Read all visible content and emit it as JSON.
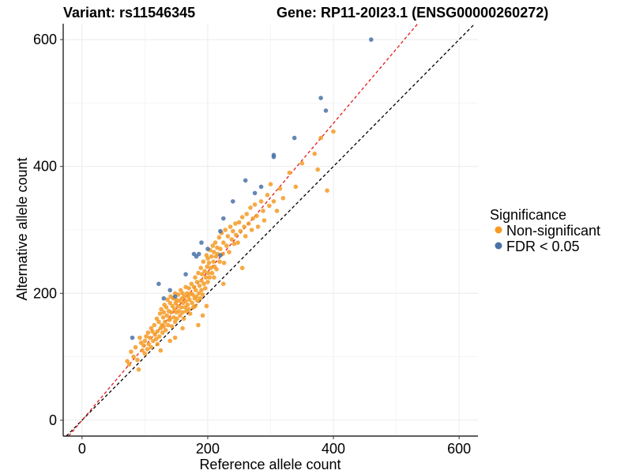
{
  "chart_data": {
    "type": "scatter",
    "title_left": "Variant: rs11546345",
    "title_right": "Gene: RP11-20I23.1 (ENSG00000260272)",
    "xlabel": "Reference allele count",
    "ylabel": "Alternative allele count",
    "xlim": [
      -30,
      630
    ],
    "ylim": [
      -25,
      625
    ],
    "x_ticks": [
      0,
      200,
      400,
      600
    ],
    "y_ticks": [
      0,
      200,
      400,
      600
    ],
    "x_tick_labels": [
      "0",
      "200",
      "400",
      "600"
    ],
    "y_tick_labels": [
      "0",
      "200",
      "400",
      "600"
    ],
    "grid": true,
    "reference_lines": [
      {
        "name": "identity",
        "slope": 1.0,
        "intercept": 0,
        "color": "#000000",
        "style": "dashed"
      },
      {
        "name": "fit",
        "slope": 1.17,
        "intercept": 0,
        "color": "#e41a1c",
        "style": "dashed"
      }
    ],
    "legend": {
      "title": "Significance",
      "position": "right",
      "entries": [
        {
          "label": "Non-significant",
          "color": "#f59a23"
        },
        {
          "label": "FDR < 0.05",
          "color": "#4a72a8"
        }
      ]
    },
    "series": [
      {
        "name": "Non-significant",
        "color": "#f59a23",
        "points": [
          [
            72,
            93
          ],
          [
            75,
            88
          ],
          [
            78,
            108
          ],
          [
            82,
            100
          ],
          [
            85,
            115
          ],
          [
            88,
            95
          ],
          [
            90,
            80
          ],
          [
            92,
            130
          ],
          [
            94,
            122
          ],
          [
            96,
            110
          ],
          [
            98,
            118
          ],
          [
            100,
            125
          ],
          [
            100,
            105
          ],
          [
            102,
            132
          ],
          [
            104,
            112
          ],
          [
            105,
            138
          ],
          [
            106,
            120
          ],
          [
            108,
            130
          ],
          [
            110,
            145
          ],
          [
            110,
            115
          ],
          [
            112,
            140
          ],
          [
            113,
            125
          ],
          [
            115,
            150
          ],
          [
            116,
            135
          ],
          [
            118,
            128
          ],
          [
            119,
            160
          ],
          [
            120,
            140
          ],
          [
            120,
            120
          ],
          [
            122,
            155
          ],
          [
            123,
            132
          ],
          [
            124,
            168
          ],
          [
            125,
            145
          ],
          [
            126,
            175
          ],
          [
            127,
            150
          ],
          [
            128,
            138
          ],
          [
            129,
            162
          ],
          [
            130,
            170
          ],
          [
            130,
            148
          ],
          [
            131,
            182
          ],
          [
            132,
            155
          ],
          [
            133,
            142
          ],
          [
            134,
            178
          ],
          [
            135,
            165
          ],
          [
            136,
            190
          ],
          [
            137,
            150
          ],
          [
            138,
            172
          ],
          [
            139,
            158
          ],
          [
            140,
            185
          ],
          [
            140,
            160
          ],
          [
            141,
            195
          ],
          [
            142,
            170
          ],
          [
            143,
            148
          ],
          [
            144,
            180
          ],
          [
            145,
            192
          ],
          [
            146,
            162
          ],
          [
            147,
            175
          ],
          [
            148,
            200
          ],
          [
            148,
            155
          ],
          [
            149,
            185
          ],
          [
            150,
            170
          ],
          [
            150,
            190
          ],
          [
            151,
            160
          ],
          [
            152,
            180
          ],
          [
            153,
            198
          ],
          [
            154,
            172
          ],
          [
            155,
            188
          ],
          [
            156,
            165
          ],
          [
            157,
            205
          ],
          [
            158,
            178
          ],
          [
            159,
            192
          ],
          [
            160,
            170
          ],
          [
            160,
            200
          ],
          [
            161,
            185
          ],
          [
            162,
            160
          ],
          [
            163,
            195
          ],
          [
            164,
            178
          ],
          [
            165,
            210
          ],
          [
            165,
            188
          ],
          [
            166,
            172
          ],
          [
            167,
            200
          ],
          [
            168,
            182
          ],
          [
            169,
            195
          ],
          [
            170,
            175
          ],
          [
            170,
            208
          ],
          [
            171,
            190
          ],
          [
            172,
            168
          ],
          [
            173,
            200
          ],
          [
            174,
            215
          ],
          [
            175,
            185
          ],
          [
            176,
            198
          ],
          [
            177,
            178
          ],
          [
            178,
            210
          ],
          [
            179,
            192
          ],
          [
            180,
            225
          ],
          [
            180,
            180
          ],
          [
            181,
            205
          ],
          [
            182,
            195
          ],
          [
            183,
            218
          ],
          [
            184,
            188
          ],
          [
            185,
            232
          ],
          [
            186,
            200
          ],
          [
            187,
            212
          ],
          [
            188,
            192
          ],
          [
            189,
            240
          ],
          [
            190,
            205
          ],
          [
            190,
            220
          ],
          [
            191,
            230
          ],
          [
            192,
            198
          ],
          [
            193,
            250
          ],
          [
            194,
            215
          ],
          [
            195,
            235
          ],
          [
            196,
            208
          ],
          [
            197,
            225
          ],
          [
            198,
            260
          ],
          [
            199,
            242
          ],
          [
            200,
            218
          ],
          [
            200,
            255
          ],
          [
            201,
            232
          ],
          [
            202,
            248
          ],
          [
            203,
            225
          ],
          [
            204,
            268
          ],
          [
            205,
            240
          ],
          [
            206,
            258
          ],
          [
            207,
            232
          ],
          [
            208,
            275
          ],
          [
            209,
            250
          ],
          [
            210,
            265
          ],
          [
            211,
            242
          ],
          [
            212,
            280
          ],
          [
            213,
            258
          ],
          [
            214,
            238
          ],
          [
            215,
            272
          ],
          [
            216,
            262
          ],
          [
            218,
            288
          ],
          [
            219,
            250
          ],
          [
            220,
            270
          ],
          [
            222,
            295
          ],
          [
            224,
            262
          ],
          [
            225,
            280
          ],
          [
            226,
            248
          ],
          [
            228,
            300
          ],
          [
            230,
            275
          ],
          [
            232,
            290
          ],
          [
            234,
            265
          ],
          [
            236,
            305
          ],
          [
            238,
            285
          ],
          [
            240,
            298
          ],
          [
            242,
            278
          ],
          [
            244,
            310
          ],
          [
            245,
            292
          ],
          [
            248,
            280
          ],
          [
            250,
            312
          ],
          [
            252,
            298
          ],
          [
            255,
            320
          ],
          [
            258,
            305
          ],
          [
            260,
            290
          ],
          [
            262,
            325
          ],
          [
            265,
            310
          ],
          [
            268,
            335
          ],
          [
            270,
            300
          ],
          [
            272,
            318
          ],
          [
            275,
            340
          ],
          [
            278,
            322
          ],
          [
            280,
            305
          ],
          [
            285,
            345
          ],
          [
            288,
            330
          ],
          [
            290,
            315
          ],
          [
            295,
            355
          ],
          [
            298,
            338
          ],
          [
            300,
            372
          ],
          [
            305,
            345
          ],
          [
            310,
            330
          ],
          [
            315,
            365
          ],
          [
            320,
            350
          ],
          [
            330,
            390
          ],
          [
            340,
            368
          ],
          [
            350,
            405
          ],
          [
            370,
            420
          ],
          [
            375,
            395
          ],
          [
            380,
            445
          ],
          [
            390,
            362
          ],
          [
            400,
            455
          ],
          [
            185,
            150
          ],
          [
            192,
            165
          ],
          [
            125,
            110
          ],
          [
            148,
            130
          ],
          [
            255,
            240
          ],
          [
            210,
            225
          ],
          [
            160,
            145
          ],
          [
            225,
            215
          ],
          [
            140,
            125
          ],
          [
            198,
            180
          ]
        ]
      },
      {
        "name": "FDR < 0.05",
        "color": "#4a72a8",
        "points": [
          [
            80,
            130
          ],
          [
            122,
            215
          ],
          [
            130,
            192
          ],
          [
            140,
            205
          ],
          [
            148,
            195
          ],
          [
            178,
            262
          ],
          [
            182,
            258
          ],
          [
            186,
            262
          ],
          [
            190,
            280
          ],
          [
            200,
            270
          ],
          [
            220,
            298
          ],
          [
            225,
            318
          ],
          [
            240,
            345
          ],
          [
            260,
            378
          ],
          [
            275,
            358
          ],
          [
            285,
            368
          ],
          [
            305,
            418
          ],
          [
            305,
            415
          ],
          [
            338,
            445
          ],
          [
            380,
            508
          ],
          [
            388,
            488
          ],
          [
            460,
            600
          ],
          [
            220,
            260
          ],
          [
            165,
            230
          ]
        ]
      }
    ]
  }
}
